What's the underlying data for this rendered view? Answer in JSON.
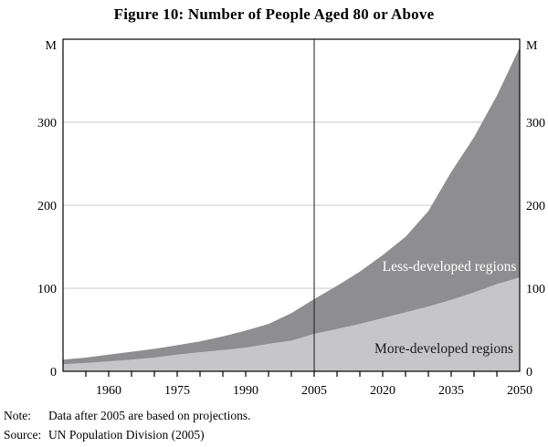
{
  "chart_data": {
    "type": "area",
    "stacked": true,
    "title": "Figure 10: Number of People Aged 80 or Above",
    "unit_label": "M",
    "x": [
      1950,
      1955,
      1960,
      1965,
      1970,
      1975,
      1980,
      1985,
      1990,
      1995,
      2000,
      2005,
      2010,
      2015,
      2020,
      2025,
      2030,
      2035,
      2040,
      2045,
      2050
    ],
    "series": [
      {
        "id": "more-developed",
        "name": "More-developed regions",
        "color": "#c6c6c8",
        "values": [
          8.5,
          10,
          12,
          14,
          16.5,
          20,
          23,
          25.5,
          28.5,
          33,
          37,
          45,
          51,
          57,
          64,
          71,
          78,
          86,
          95,
          105,
          113
        ]
      },
      {
        "id": "less-developed",
        "name": "Less-developed regions",
        "color": "#8e8e90",
        "values": [
          5.5,
          6.5,
          8,
          9.5,
          10.5,
          11.5,
          13,
          16.5,
          20.5,
          24,
          33,
          42,
          52,
          63,
          76,
          91,
          115,
          154,
          187,
          227,
          277
        ]
      }
    ],
    "xlim": [
      1950,
      2050
    ],
    "ylim": [
      0,
      400
    ],
    "yticks": [
      0,
      100,
      200,
      300
    ],
    "xtick_labels": [
      1960,
      1975,
      1990,
      2005,
      2020,
      2035,
      2050
    ],
    "minor_xtick_step": 5,
    "vline_x": 2005,
    "grid": true,
    "legend_position": "labels-on-chart",
    "ylabel": "",
    "xlabel": ""
  },
  "colors": {
    "background": "#ffffff",
    "axis": "#000000",
    "gridline": "#c9c9c9",
    "vline": "#1a1a1a",
    "text": "#000000",
    "label_on_dark": "#ffffff",
    "label_on_light": "#1a1a1a"
  },
  "note": {
    "label": "Note:",
    "text": "Data after 2005 are based on projections."
  },
  "source": {
    "label": "Source:",
    "text": "UN Population Division (2005)"
  }
}
